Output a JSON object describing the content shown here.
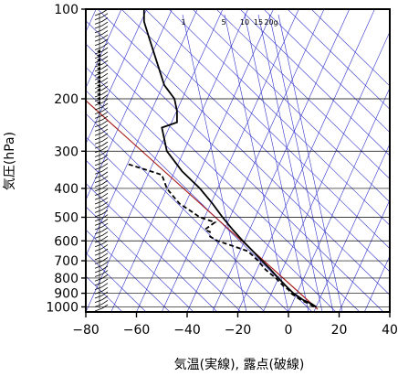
{
  "chart_data": {
    "type": "line",
    "chart_kind": "skew-T log-P aerological diagram",
    "xlabel": "気温(実線), 露点(破線)",
    "ylabel": "気圧(hPa)",
    "x_range": [
      -80,
      40
    ],
    "y_range_hPa": [
      1040,
      100
    ],
    "y_scale": "log",
    "x_ticks": [
      -80,
      -60,
      -40,
      -20,
      0,
      20,
      40
    ],
    "x_tick_labels": [
      "−80",
      "−60",
      "−40",
      "−20",
      "0",
      "20",
      "40"
    ],
    "y_ticks": [
      100,
      200,
      300,
      400,
      500,
      600,
      700,
      800,
      900,
      1000
    ],
    "y_tick_labels": [
      "100",
      "200",
      "300",
      "400",
      "500",
      "600",
      "700",
      "800",
      "900",
      "1000"
    ],
    "mixing_ratio_labels": [
      "1",
      "5",
      "10",
      "15",
      "20g"
    ],
    "colors": {
      "temperature": "#000000",
      "dewpoint": "#000000",
      "background_lines": "#3333cc",
      "dry_adiabat_highlight": "#aa2222"
    },
    "series": [
      {
        "style": "solid",
        "points": [
          [
            1000,
            11
          ],
          [
            975,
            9
          ],
          [
            950,
            6
          ],
          [
            925,
            4
          ],
          [
            900,
            2
          ],
          [
            875,
            0.5
          ],
          [
            850,
            -1
          ],
          [
            825,
            -2.5
          ],
          [
            800,
            -4
          ],
          [
            775,
            -5.5
          ],
          [
            750,
            -7
          ],
          [
            700,
            -10.5
          ],
          [
            650,
            -14
          ],
          [
            600,
            -18
          ],
          [
            550,
            -22
          ],
          [
            500,
            -26
          ],
          [
            450,
            -30
          ],
          [
            400,
            -35
          ],
          [
            350,
            -42
          ],
          [
            300,
            -48
          ],
          [
            250,
            -50
          ],
          [
            240,
            -44
          ],
          [
            220,
            -44
          ],
          [
            200,
            -45
          ],
          [
            180,
            -49
          ],
          [
            150,
            -52
          ],
          [
            125,
            -55
          ],
          [
            110,
            -57
          ],
          [
            100,
            -57
          ]
        ]
      },
      {
        "style": "dashed",
        "points": [
          [
            1000,
            10
          ],
          [
            975,
            8
          ],
          [
            950,
            5
          ],
          [
            925,
            3
          ],
          [
            900,
            1
          ],
          [
            875,
            0
          ],
          [
            850,
            -2
          ],
          [
            825,
            -3.5
          ],
          [
            800,
            -5
          ],
          [
            775,
            -7
          ],
          [
            750,
            -9
          ],
          [
            700,
            -12
          ],
          [
            650,
            -16
          ],
          [
            620,
            -23
          ],
          [
            600,
            -28
          ],
          [
            580,
            -31
          ],
          [
            560,
            -31
          ],
          [
            550,
            -33
          ],
          [
            520,
            -29
          ],
          [
            500,
            -35
          ],
          [
            480,
            -38
          ],
          [
            450,
            -43
          ],
          [
            420,
            -46
          ],
          [
            400,
            -48
          ],
          [
            360,
            -50
          ],
          [
            330,
            -64
          ]
        ]
      }
    ],
    "wind_barbs": true
  }
}
